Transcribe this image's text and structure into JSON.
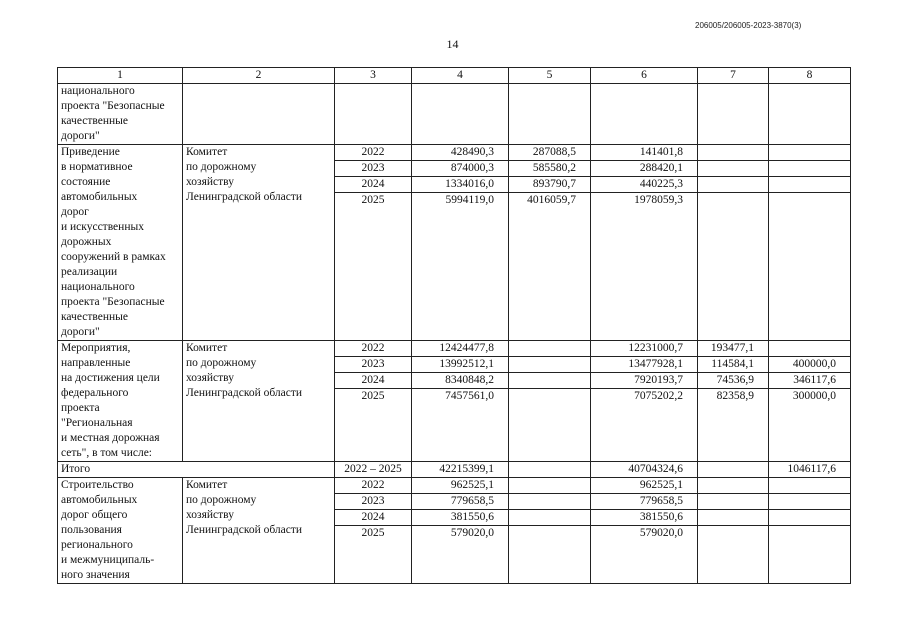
{
  "doc_id": "206005/206005-2023-3870(3)",
  "page_number": "14",
  "headers": [
    "1",
    "2",
    "3",
    "4",
    "5",
    "6",
    "7",
    "8"
  ],
  "continuation": {
    "name_lines": [
      "национального",
      "проекта \"Безопасные",
      "качественные",
      "дороги\""
    ]
  },
  "groups": [
    {
      "name_lines": [
        "Приведение",
        "в нормативное",
        "состояние",
        "автомобильных",
        "дорог",
        "и искусственных",
        "дорожных",
        "сооружений в рамках",
        "реализации",
        "национального",
        "проекта \"Безопасные",
        "качественные",
        "дороги\""
      ],
      "executor_lines": [
        "Комитет",
        "по дорожному",
        "хозяйству",
        "Ленинградской области"
      ],
      "rows": [
        {
          "year": "2022",
          "c4": "428490,3",
          "c5": "287088,5",
          "c6": "141401,8",
          "c7": "",
          "c8": ""
        },
        {
          "year": "2023",
          "c4": "874000,3",
          "c5": "585580,2",
          "c6": "288420,1",
          "c7": "",
          "c8": ""
        },
        {
          "year": "2024",
          "c4": "1334016,0",
          "c5": "893790,7",
          "c6": "440225,3",
          "c7": "",
          "c8": ""
        },
        {
          "year": "2025",
          "c4": "5994119,0",
          "c5": "4016059,7",
          "c6": "1978059,3",
          "c7": "",
          "c8": ""
        }
      ]
    },
    {
      "name_lines": [
        "Мероприятия,",
        "направленные",
        "на достижения цели",
        "федерального",
        "проекта",
        "\"Региональная",
        "и местная дорожная",
        "сеть\", в том числе:"
      ],
      "executor_lines": [
        "Комитет",
        "по дорожному",
        "хозяйству",
        "Ленинградской области"
      ],
      "rows": [
        {
          "year": "2022",
          "c4": "12424477,8",
          "c5": "",
          "c6": "12231000,7",
          "c7": "193477,1",
          "c8": ""
        },
        {
          "year": "2023",
          "c4": "13992512,1",
          "c5": "",
          "c6": "13477928,1",
          "c7": "114584,1",
          "c8": "400000,0"
        },
        {
          "year": "2024",
          "c4": "8340848,2",
          "c5": "",
          "c6": "7920193,7",
          "c7": "74536,9",
          "c8": "346117,6"
        },
        {
          "year": "2025",
          "c4": "7457561,0",
          "c5": "",
          "c6": "7075202,2",
          "c7": "82358,9",
          "c8": "300000,0"
        }
      ]
    }
  ],
  "total": {
    "label": "Итого",
    "years": "2022 – 2025",
    "c4": "42215399,1",
    "c5": "",
    "c6": "40704324,6",
    "c7": "",
    "c8": "1046117,6"
  },
  "group3": {
    "name_lines": [
      "Строительство",
      "автомобильных",
      "дорог общего",
      "пользования",
      "регионального",
      "и межмуниципаль-",
      "ного значения"
    ],
    "executor_lines": [
      "Комитет",
      "по дорожному",
      "хозяйству",
      "Ленинградской области"
    ],
    "rows": [
      {
        "year": "2022",
        "c4": "962525,1",
        "c5": "",
        "c6": "962525,1",
        "c7": "",
        "c8": ""
      },
      {
        "year": "2023",
        "c4": "779658,5",
        "c5": "",
        "c6": "779658,5",
        "c7": "",
        "c8": ""
      },
      {
        "year": "2024",
        "c4": "381550,6",
        "c5": "",
        "c6": "381550,6",
        "c7": "",
        "c8": ""
      },
      {
        "year": "2025",
        "c4": "579020,0",
        "c5": "",
        "c6": "579020,0",
        "c7": "",
        "c8": ""
      }
    ]
  }
}
